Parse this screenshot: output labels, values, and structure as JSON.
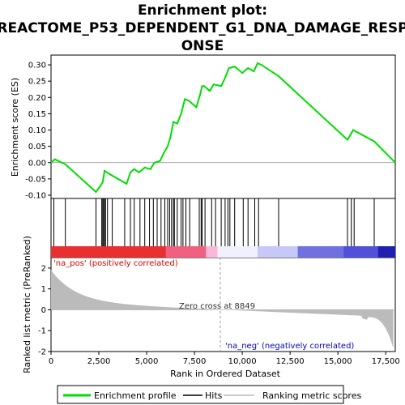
{
  "chart_data": {
    "type": "line",
    "title_lines": [
      "Enrichment plot:",
      "REACTOME_P53_DEPENDENT_G1_DNA_DAMAGE_RESP",
      "ONSE"
    ],
    "xlabel": "Rank in Ordered Dataset",
    "ylabel_top": "Enrichment score (ES)",
    "ylabel_bottom": "Ranked list metric (PreRanked)",
    "xlim": [
      0,
      18000
    ],
    "ylim_top": [
      -0.11,
      0.33
    ],
    "ylim_bottom": [
      -2.0,
      2.5
    ],
    "x_ticks": [
      0,
      2500,
      5000,
      7500,
      10000,
      12500,
      15000,
      17500
    ],
    "x_tick_labels": [
      "0",
      "2,500",
      "5,000",
      "7,500",
      "10,000",
      "12,500",
      "15,000",
      "17,500"
    ],
    "y_ticks_top": [
      -0.1,
      -0.05,
      0.0,
      0.05,
      0.1,
      0.15,
      0.2,
      0.25,
      0.3
    ],
    "y_tick_labels_top": [
      "-0.10",
      "-0.05",
      "0.00",
      "0.05",
      "0.10",
      "0.15",
      "0.20",
      "0.25",
      "0.30"
    ],
    "y_ticks_bottom": [
      -2,
      -1,
      0,
      1,
      2
    ],
    "y_tick_labels_bottom": [
      "-2",
      "-1",
      "0",
      "1",
      "2"
    ],
    "zero_cross_label": "Zero cross at 8849",
    "zero_cross": 8849,
    "pos_label": "'na_pos' (positively correlated)",
    "neg_label": "'na_neg' (negatively correlated)",
    "series": [
      {
        "name": "Enrichment profile",
        "color": "#00dd00",
        "x": [
          0,
          200,
          750,
          2350,
          2600,
          2700,
          2800,
          3050,
          3950,
          4150,
          4350,
          4600,
          4900,
          5200,
          5400,
          5700,
          5900,
          6100,
          6250,
          6400,
          6600,
          6800,
          7000,
          7200,
          7600,
          7800,
          7900,
          8000,
          8300,
          8500,
          8900,
          9100,
          9300,
          9600,
          10000,
          10300,
          10600,
          10800,
          11000,
          11900,
          15500,
          15800,
          16900,
          18000
        ],
        "y": [
          0.0,
          0.01,
          -0.005,
          -0.09,
          -0.07,
          -0.06,
          -0.025,
          -0.035,
          -0.065,
          -0.03,
          -0.02,
          -0.03,
          -0.015,
          -0.02,
          0.0,
          0.005,
          0.03,
          0.05,
          0.08,
          0.125,
          0.12,
          0.15,
          0.195,
          0.19,
          0.17,
          0.21,
          0.235,
          0.235,
          0.22,
          0.24,
          0.235,
          0.26,
          0.29,
          0.295,
          0.275,
          0.29,
          0.28,
          0.305,
          0.3,
          0.265,
          0.07,
          0.1,
          0.065,
          0.0
        ]
      }
    ],
    "hits": [
      150,
      750,
      2350,
      2650,
      2700,
      2750,
      2800,
      2850,
      2950,
      3200,
      3850,
      4150,
      4350,
      4650,
      4900,
      5150,
      5350,
      5550,
      5750,
      5950,
      6100,
      6200,
      6300,
      6400,
      6450,
      6600,
      6800,
      6900,
      7050,
      7250,
      7750,
      7850,
      7900,
      8050,
      8400,
      8600,
      8900,
      9100,
      9250,
      9350,
      9600,
      10050,
      10300,
      10650,
      10850,
      11900,
      15500,
      15700,
      15850,
      16900
    ],
    "legend": [
      {
        "label": "Enrichment profile",
        "color": "#00dd00"
      },
      {
        "label": "Hits",
        "color": "#000000"
      },
      {
        "label": "Ranking metric scores",
        "color": "#bbbbbb"
      }
    ]
  }
}
